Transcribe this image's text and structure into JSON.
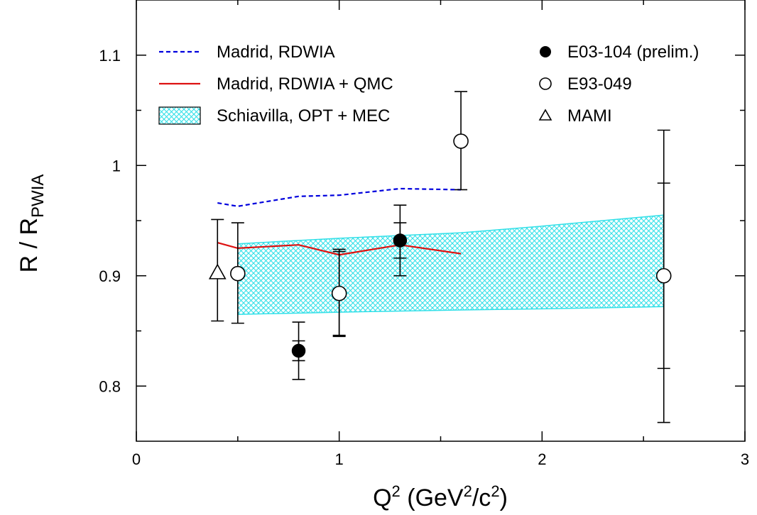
{
  "chart_data": {
    "type": "scatter",
    "xlabel": {
      "base": "Q",
      "sup1": "2",
      "middle": " (GeV",
      "sup2": "2",
      "slash": "/c",
      "sup3": "2",
      "end": ")"
    },
    "ylabel": {
      "base": "R / R",
      "sub": "PWIA"
    },
    "xlim": [
      0,
      3
    ],
    "ylim": [
      0.75,
      1.15
    ],
    "x_ticks": [
      {
        "value": 0,
        "label": "0"
      },
      {
        "value": 1,
        "label": "1"
      },
      {
        "value": 2,
        "label": "2"
      },
      {
        "value": 3,
        "label": "3"
      }
    ],
    "y_ticks": [
      {
        "value": 0.8,
        "label": "0.8"
      },
      {
        "value": 0.9,
        "label": "0.9"
      },
      {
        "value": 1.0,
        "label": "1"
      },
      {
        "value": 1.1,
        "label": "1.1"
      }
    ],
    "grid": false,
    "legend_left_placement": "top-left",
    "legend_right_placement": "top-right",
    "band": {
      "name": "Schiavilla,  OPT + MEC",
      "color": "#33e0e8",
      "x": [
        0.5,
        1.0,
        1.6,
        2.0,
        2.6
      ],
      "upper": [
        0.929,
        0.934,
        0.939,
        0.945,
        0.955
      ],
      "lower": [
        0.865,
        0.867,
        0.869,
        0.87,
        0.872
      ]
    },
    "lines": [
      {
        "name": "Madrid,  RDWIA",
        "style": "dashed",
        "color": "#0000dd",
        "x": [
          0.4,
          0.5,
          0.8,
          1.0,
          1.3,
          1.6
        ],
        "y": [
          0.966,
          0.963,
          0.972,
          0.973,
          0.979,
          0.978
        ]
      },
      {
        "name": "Madrid,  RDWIA + QMC",
        "style": "solid",
        "color": "#dd1111",
        "x": [
          0.4,
          0.5,
          0.8,
          1.0,
          1.3,
          1.6
        ],
        "y": [
          0.93,
          0.925,
          0.928,
          0.919,
          0.928,
          0.92
        ]
      }
    ],
    "series": [
      {
        "name": "E03-104 (prelim.)",
        "marker": "filled-circle",
        "points": [
          {
            "x": 0.8,
            "y": 0.832,
            "inner": [
              0.823,
              0.841
            ],
            "outer": [
              0.806,
              0.858
            ]
          },
          {
            "x": 1.3,
            "y": 0.932,
            "inner": [
              0.916,
              0.948
            ],
            "outer": [
              0.9,
              0.964
            ]
          }
        ]
      },
      {
        "name": "E93-049",
        "marker": "open-circle",
        "points": [
          {
            "x": 0.5,
            "y": 0.902,
            "inner": null,
            "outer": [
              0.857,
              0.948
            ]
          },
          {
            "x": 1.0,
            "y": 0.884,
            "inner": [
              0.846,
              0.922
            ],
            "outer": [
              0.845,
              0.924
            ]
          },
          {
            "x": 1.6,
            "y": 1.022,
            "inner": null,
            "outer": [
              0.978,
              1.067
            ]
          },
          {
            "x": 2.6,
            "y": 0.9,
            "inner": [
              0.816,
              0.984
            ],
            "outer": [
              0.767,
              1.032
            ]
          }
        ]
      },
      {
        "name": "MAMI",
        "marker": "open-triangle",
        "points": [
          {
            "x": 0.4,
            "y": 0.903,
            "inner": null,
            "outer": [
              0.859,
              0.951
            ]
          }
        ]
      }
    ]
  }
}
